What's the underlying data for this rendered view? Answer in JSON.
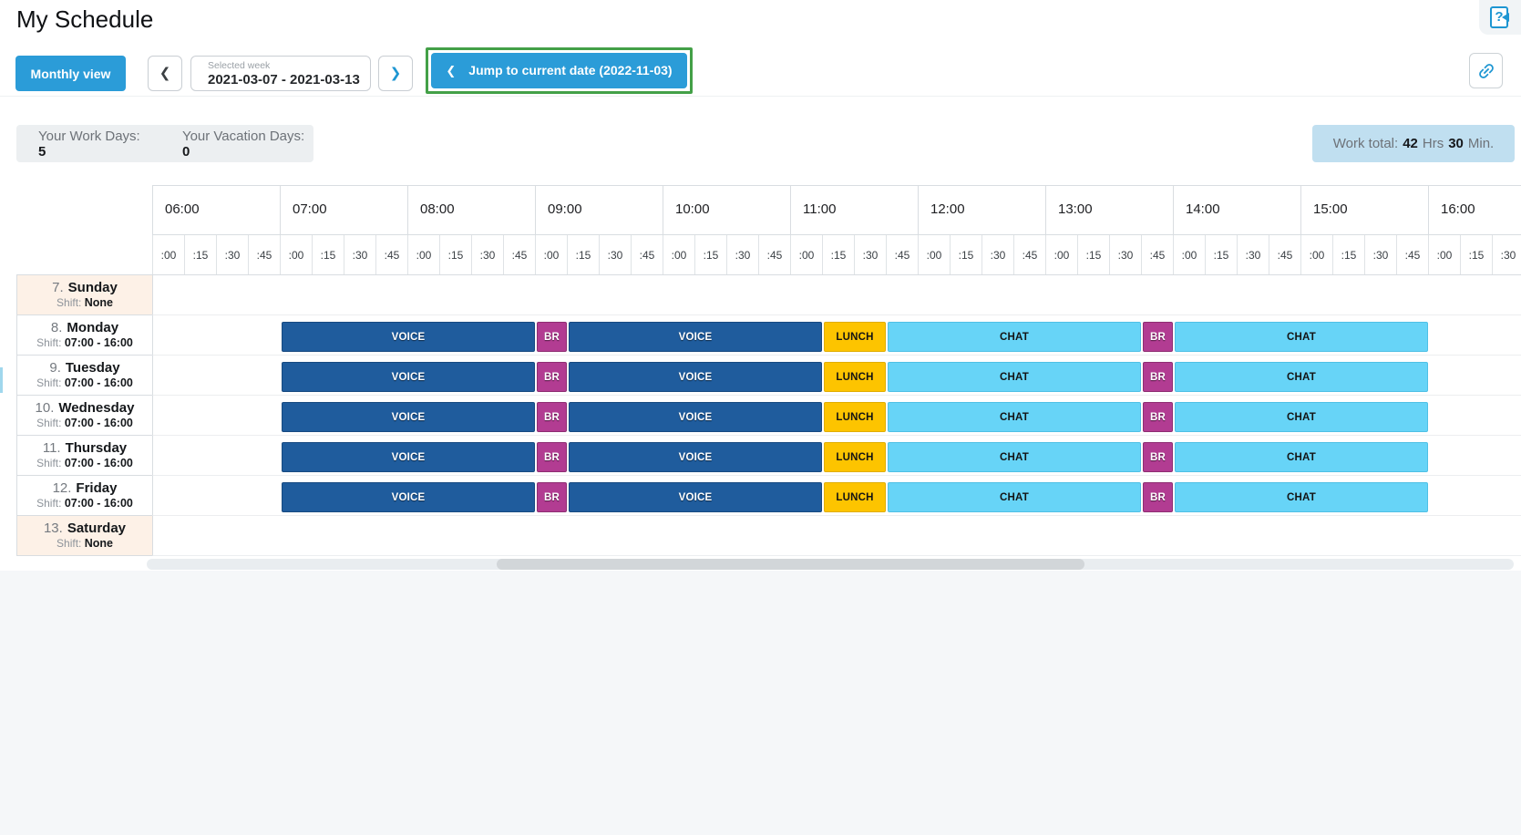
{
  "header": {
    "title": "My Schedule"
  },
  "icons": {
    "chevron_left": "❮",
    "chevron_right": "❯",
    "help_glyph": "?",
    "help_name": "help-icon",
    "link_name": "link-icon"
  },
  "toolbar": {
    "monthly_view_label": "Monthly view",
    "selected_week_label": "Selected week",
    "selected_week_value": "2021-03-07 - 2021-03-13",
    "jump_label": "Jump to current date (2022-11-03)",
    "highlight_color": "#43a047",
    "accent_color": "#2b9cd8"
  },
  "stats": {
    "work_days_label": "Your Work Days:",
    "work_days_value": "5",
    "vacation_days_label": "Your Vacation Days:",
    "vacation_days_value": "0",
    "work_total_label": "Work total:",
    "work_total_hours": "42",
    "work_total_hours_unit": "Hrs",
    "work_total_minutes": "30",
    "work_total_minutes_unit": "Min."
  },
  "schedule": {
    "timeline_start": "06:00",
    "hours": [
      "06:00",
      "07:00",
      "08:00",
      "09:00",
      "10:00",
      "11:00",
      "12:00",
      "13:00",
      "14:00",
      "15:00",
      "16:00"
    ],
    "quarters": [
      ":00",
      ":15",
      ":30",
      ":45"
    ],
    "segment_colors": {
      "voice": "#1f5c9d",
      "break": "#b23c92",
      "lunch": "#fdc400",
      "chat": "#67d4f7"
    },
    "days": [
      {
        "number": "7.",
        "name": "Sunday",
        "shift_label": "Shift:",
        "shift": "None",
        "weekend": true,
        "segments": []
      },
      {
        "number": "8.",
        "name": "Monday",
        "shift_label": "Shift:",
        "shift": "07:00 - 16:00",
        "weekend": false,
        "segments": [
          {
            "label": "VOICE",
            "type": "voice",
            "start": "07:00",
            "end": "09:00"
          },
          {
            "label": "BR",
            "type": "break",
            "start": "09:00",
            "end": "09:15"
          },
          {
            "label": "VOICE",
            "type": "voice",
            "start": "09:15",
            "end": "11:15"
          },
          {
            "label": "LUNCH",
            "type": "lunch",
            "start": "11:15",
            "end": "11:45"
          },
          {
            "label": "CHAT",
            "type": "chat",
            "start": "11:45",
            "end": "13:45"
          },
          {
            "label": "BR",
            "type": "break",
            "start": "13:45",
            "end": "14:00"
          },
          {
            "label": "CHAT",
            "type": "chat",
            "start": "14:00",
            "end": "16:00"
          }
        ]
      },
      {
        "number": "9.",
        "name": "Tuesday",
        "shift_label": "Shift:",
        "shift": "07:00 - 16:00",
        "weekend": false,
        "segments": [
          {
            "label": "VOICE",
            "type": "voice",
            "start": "07:00",
            "end": "09:00"
          },
          {
            "label": "BR",
            "type": "break",
            "start": "09:00",
            "end": "09:15"
          },
          {
            "label": "VOICE",
            "type": "voice",
            "start": "09:15",
            "end": "11:15"
          },
          {
            "label": "LUNCH",
            "type": "lunch",
            "start": "11:15",
            "end": "11:45"
          },
          {
            "label": "CHAT",
            "type": "chat",
            "start": "11:45",
            "end": "13:45"
          },
          {
            "label": "BR",
            "type": "break",
            "start": "13:45",
            "end": "14:00"
          },
          {
            "label": "CHAT",
            "type": "chat",
            "start": "14:00",
            "end": "16:00"
          }
        ]
      },
      {
        "number": "10.",
        "name": "Wednesday",
        "shift_label": "Shift:",
        "shift": "07:00 - 16:00",
        "weekend": false,
        "segments": [
          {
            "label": "VOICE",
            "type": "voice",
            "start": "07:00",
            "end": "09:00"
          },
          {
            "label": "BR",
            "type": "break",
            "start": "09:00",
            "end": "09:15"
          },
          {
            "label": "VOICE",
            "type": "voice",
            "start": "09:15",
            "end": "11:15"
          },
          {
            "label": "LUNCH",
            "type": "lunch",
            "start": "11:15",
            "end": "11:45"
          },
          {
            "label": "CHAT",
            "type": "chat",
            "start": "11:45",
            "end": "13:45"
          },
          {
            "label": "BR",
            "type": "break",
            "start": "13:45",
            "end": "14:00"
          },
          {
            "label": "CHAT",
            "type": "chat",
            "start": "14:00",
            "end": "16:00"
          }
        ]
      },
      {
        "number": "11.",
        "name": "Thursday",
        "shift_label": "Shift:",
        "shift": "07:00 - 16:00",
        "weekend": false,
        "segments": [
          {
            "label": "VOICE",
            "type": "voice",
            "start": "07:00",
            "end": "09:00"
          },
          {
            "label": "BR",
            "type": "break",
            "start": "09:00",
            "end": "09:15"
          },
          {
            "label": "VOICE",
            "type": "voice",
            "start": "09:15",
            "end": "11:15"
          },
          {
            "label": "LUNCH",
            "type": "lunch",
            "start": "11:15",
            "end": "11:45"
          },
          {
            "label": "CHAT",
            "type": "chat",
            "start": "11:45",
            "end": "13:45"
          },
          {
            "label": "BR",
            "type": "break",
            "start": "13:45",
            "end": "14:00"
          },
          {
            "label": "CHAT",
            "type": "chat",
            "start": "14:00",
            "end": "16:00"
          }
        ]
      },
      {
        "number": "12.",
        "name": "Friday",
        "shift_label": "Shift:",
        "shift": "07:00 - 16:00",
        "weekend": false,
        "segments": [
          {
            "label": "VOICE",
            "type": "voice",
            "start": "07:00",
            "end": "09:00"
          },
          {
            "label": "BR",
            "type": "break",
            "start": "09:00",
            "end": "09:15"
          },
          {
            "label": "VOICE",
            "type": "voice",
            "start": "09:15",
            "end": "11:15"
          },
          {
            "label": "LUNCH",
            "type": "lunch",
            "start": "11:15",
            "end": "11:45"
          },
          {
            "label": "CHAT",
            "type": "chat",
            "start": "11:45",
            "end": "13:45"
          },
          {
            "label": "BR",
            "type": "break",
            "start": "13:45",
            "end": "14:00"
          },
          {
            "label": "CHAT",
            "type": "chat",
            "start": "14:00",
            "end": "16:00"
          }
        ]
      },
      {
        "number": "13.",
        "name": "Saturday",
        "shift_label": "Shift:",
        "shift": "None",
        "weekend": true,
        "segments": []
      }
    ]
  }
}
